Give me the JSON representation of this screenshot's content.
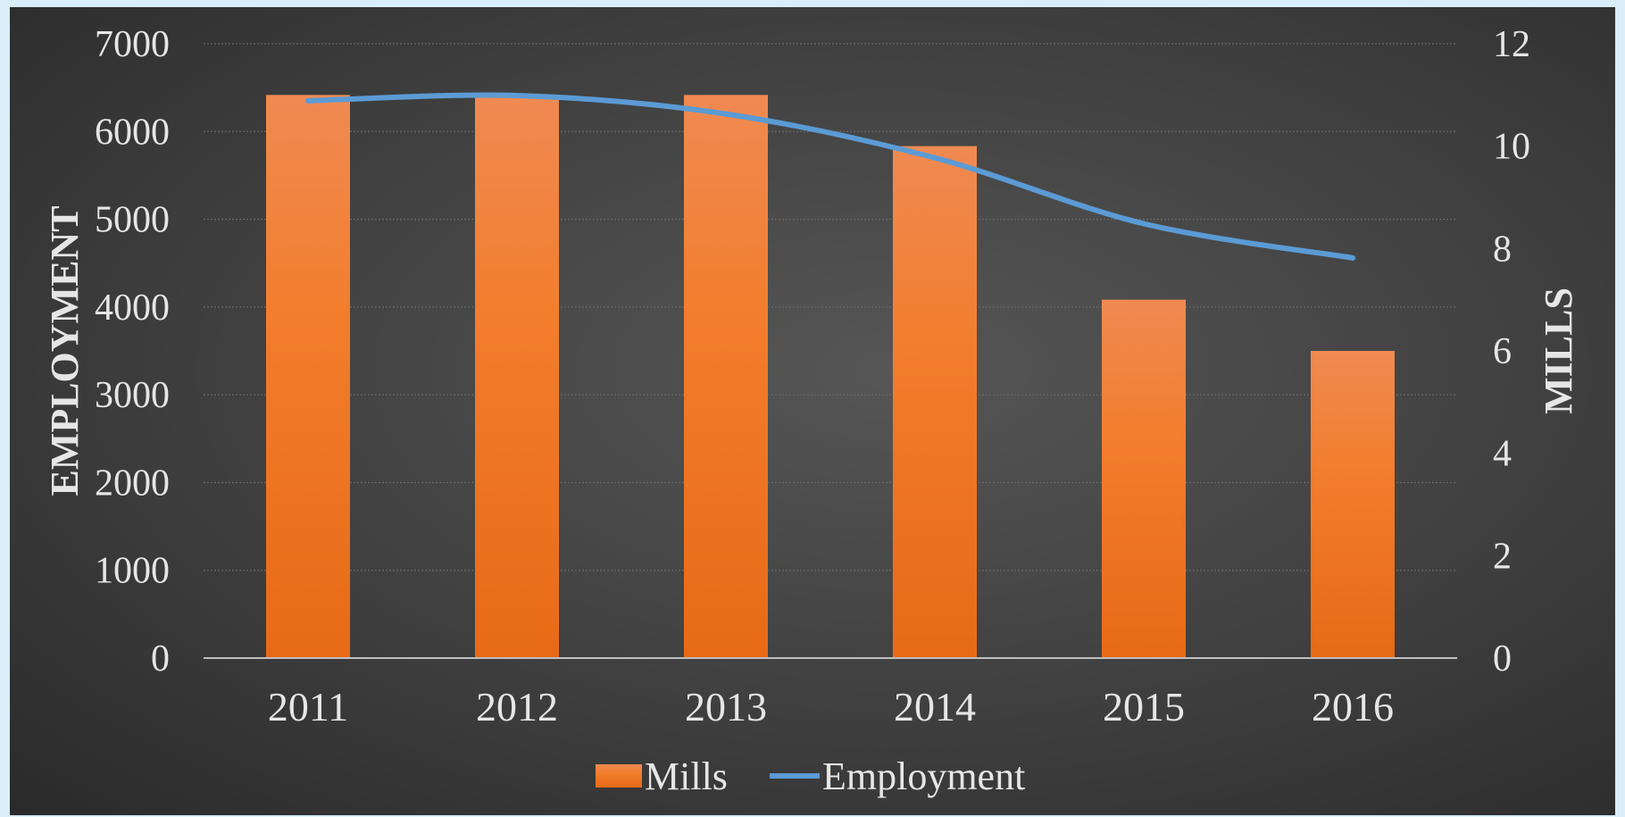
{
  "chart_data": {
    "type": "bar",
    "categories": [
      "2011",
      "2012",
      "2013",
      "2014",
      "2015",
      "2016"
    ],
    "series": [
      {
        "name": "Mills",
        "type": "bar",
        "axis": "right",
        "values": [
          11,
          11,
          11,
          10,
          7,
          6
        ],
        "color": "#f07f2f"
      },
      {
        "name": "Employment",
        "type": "line",
        "axis": "left",
        "values": [
          6350,
          6410,
          6200,
          5700,
          4950,
          4560
        ],
        "color": "#5b9bd5"
      }
    ],
    "ylabel": "EMPLOYMENT",
    "y2label": "MILLS",
    "ylim": [
      0,
      7000
    ],
    "y2lim": [
      0,
      12
    ],
    "yticks": [
      "0",
      "1000",
      "2000",
      "3000",
      "4000",
      "5000",
      "6000",
      "7000"
    ],
    "y2ticks": [
      "0",
      "2",
      "4",
      "6",
      "8",
      "10",
      "12"
    ],
    "grid": true,
    "legend": "bottom-center"
  }
}
